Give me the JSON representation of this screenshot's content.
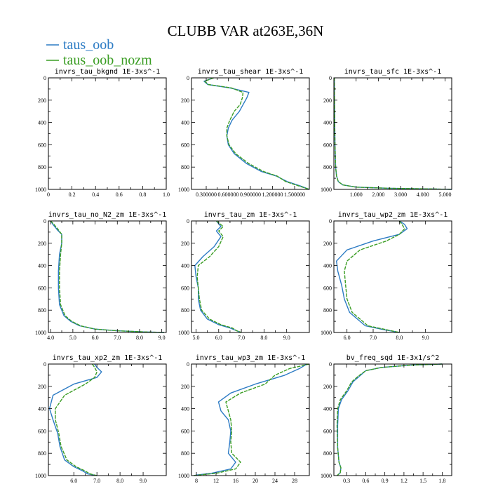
{
  "title": "CLUBB VAR at263E,36N",
  "legend": [
    {
      "name": "taus_oob",
      "color": "#2c7bc4"
    },
    {
      "name": "taus_oob_nozm",
      "color": "#3a9d23"
    }
  ],
  "chart_data": [
    {
      "type": "line",
      "title": "invrs_tau_bkgnd  1E-3xs^-1",
      "xlim": [
        0,
        1.0
      ],
      "ylim": [
        0,
        1000
      ],
      "xticks": [
        0,
        0.2,
        0.4,
        0.6,
        0.8,
        1.0
      ],
      "xticklabels": [
        "0",
        "0.2",
        "0.4",
        "0.6",
        "0.8",
        "1.0"
      ],
      "yticks": [
        0,
        200,
        400,
        600,
        800,
        1000
      ],
      "yticklabels": [
        "0",
        "200",
        "400",
        "600",
        "800",
        "1000"
      ],
      "series": []
    },
    {
      "type": "line",
      "title": "invrs_tau_shear  1E-3xs^-1",
      "xlim": [
        0.1,
        1.7
      ],
      "ylim": [
        0,
        1000
      ],
      "xticks": [
        0.3,
        0.6,
        0.9,
        1.2,
        1.5
      ],
      "xticklabels": [
        "0.300000",
        "0.600000",
        "0.900000",
        "1.200000",
        "1.500000"
      ],
      "yticks": [
        0,
        200,
        400,
        600,
        800,
        1000
      ],
      "yticklabels": [
        "0",
        "200",
        "400",
        "600",
        "800",
        "1000"
      ],
      "series": [
        {
          "name": "taus_oob",
          "x": [
            0.4,
            0.27,
            0.32,
            0.62,
            0.88,
            0.85,
            0.8,
            0.75,
            0.65,
            0.6,
            0.58,
            0.6,
            0.68,
            0.85,
            1.05,
            1.25,
            1.4,
            1.58,
            1.7
          ],
          "y": [
            0,
            30,
            60,
            90,
            130,
            180,
            240,
            300,
            380,
            450,
            520,
            600,
            680,
            770,
            840,
            880,
            930,
            970,
            1000
          ]
        },
        {
          "name": "taus_oob_nozm",
          "x": [
            0.4,
            0.28,
            0.33,
            0.64,
            0.8,
            0.79,
            0.76,
            0.68,
            0.62,
            0.58,
            0.58,
            0.61,
            0.7,
            0.88,
            1.08,
            1.26,
            1.38,
            1.56,
            1.7
          ],
          "y": [
            0,
            30,
            60,
            90,
            130,
            180,
            240,
            300,
            380,
            450,
            520,
            600,
            680,
            770,
            840,
            880,
            930,
            970,
            1000
          ]
        }
      ]
    },
    {
      "type": "line",
      "title": "invrs_tau_sfc  1E-3xs^-1",
      "xlim": [
        0,
        5.3
      ],
      "ylim": [
        0,
        1000
      ],
      "xticks": [
        1,
        2,
        3,
        4,
        5
      ],
      "xticklabels": [
        "1.000",
        "2.000",
        "3.000",
        "4.000",
        "5.000"
      ],
      "yticks": [
        0,
        200,
        400,
        600,
        800,
        1000
      ],
      "yticklabels": [
        "0",
        "200",
        "400",
        "600",
        "800",
        "1000"
      ],
      "series": [
        {
          "name": "taus_oob",
          "x": [
            0.02,
            0.03,
            0.05,
            0.08,
            0.12,
            0.2,
            0.4,
            1.0,
            2.5,
            4.5,
            5.3
          ],
          "y": [
            0,
            300,
            600,
            800,
            880,
            930,
            960,
            980,
            990,
            996,
            1000
          ]
        },
        {
          "name": "taus_oob_nozm",
          "x": [
            0.02,
            0.03,
            0.05,
            0.08,
            0.12,
            0.2,
            0.4,
            1.0,
            2.5,
            4.5,
            5.3
          ],
          "y": [
            0,
            300,
            600,
            800,
            880,
            930,
            960,
            980,
            990,
            996,
            1000
          ]
        }
      ]
    },
    {
      "type": "line",
      "title": "invrs_tau_no_N2_zm  1E-3xs^-1",
      "xlim": [
        3.9,
        9.2
      ],
      "ylim": [
        0,
        1000
      ],
      "xticks": [
        4,
        5,
        6,
        7,
        8,
        9
      ],
      "xticklabels": [
        "4.0",
        "5.0",
        "6.0",
        "7.0",
        "8.0",
        "9.0"
      ],
      "yticks": [
        0,
        200,
        400,
        600,
        800,
        1000
      ],
      "yticklabels": [
        "0",
        "200",
        "400",
        "600",
        "800",
        "1000"
      ],
      "series": [
        {
          "name": "taus_oob",
          "x": [
            4.0,
            4.1,
            4.3,
            4.5,
            4.5,
            4.4,
            4.35,
            4.35,
            4.4,
            4.6,
            4.9,
            5.3,
            6.0,
            7.0,
            8.2,
            9.1
          ],
          "y": [
            0,
            30,
            80,
            120,
            200,
            300,
            450,
            600,
            750,
            850,
            900,
            940,
            970,
            985,
            995,
            1000
          ]
        },
        {
          "name": "taus_oob_nozm",
          "x": [
            4.0,
            4.15,
            4.35,
            4.5,
            4.5,
            4.45,
            4.4,
            4.4,
            4.45,
            4.65,
            4.95,
            5.35,
            6.0,
            7.0,
            8.2,
            9.1
          ],
          "y": [
            0,
            30,
            80,
            120,
            200,
            300,
            450,
            600,
            750,
            850,
            900,
            940,
            970,
            985,
            995,
            1000
          ]
        }
      ]
    },
    {
      "type": "line",
      "title": "invrs_tau_zm  1E-3xs^-1",
      "xlim": [
        4.8,
        10.0
      ],
      "ylim": [
        0,
        1000
      ],
      "xticks": [
        5,
        6,
        7,
        8,
        9
      ],
      "xticklabels": [
        "5.0",
        "6.0",
        "7.0",
        "8.0",
        "9.0"
      ],
      "yticks": [
        0,
        200,
        400,
        600,
        800,
        1000
      ],
      "yticklabels": [
        "0",
        "200",
        "400",
        "600",
        "800",
        "1000"
      ],
      "series": [
        {
          "name": "taus_oob",
          "x": [
            5.9,
            6.1,
            5.9,
            6.1,
            5.8,
            5.3,
            4.95,
            5.0,
            5.1,
            5.1,
            5.2,
            5.5,
            6.0,
            6.5,
            6.8,
            7.0
          ],
          "y": [
            0,
            50,
            90,
            140,
            230,
            320,
            400,
            500,
            600,
            700,
            800,
            880,
            930,
            960,
            985,
            1000
          ]
        },
        {
          "name": "taus_oob_nozm",
          "x": [
            5.9,
            6.2,
            6.0,
            6.2,
            6.0,
            5.6,
            5.1,
            5.05,
            5.1,
            5.15,
            5.25,
            5.6,
            6.1,
            6.6,
            6.8,
            7.0
          ],
          "y": [
            0,
            50,
            90,
            140,
            230,
            320,
            400,
            500,
            600,
            700,
            800,
            880,
            930,
            960,
            985,
            1000
          ]
        }
      ]
    },
    {
      "type": "line",
      "title": "invrs_tau_wp2_zm  1E-3xs^-1",
      "xlim": [
        5.5,
        10.0
      ],
      "ylim": [
        0,
        1000
      ],
      "xticks": [
        6,
        7,
        8,
        9
      ],
      "xticklabels": [
        "6.0",
        "7.0",
        "8.0",
        "9.0"
      ],
      "yticks": [
        0,
        200,
        400,
        600,
        800,
        1000
      ],
      "yticklabels": [
        "0",
        "200",
        "400",
        "600",
        "800",
        "1000"
      ],
      "series": [
        {
          "name": "taus_oob",
          "x": [
            8.0,
            8.2,
            8.3,
            8.0,
            7.0,
            6.0,
            5.6,
            5.65,
            5.8,
            5.9,
            6.1,
            6.5,
            6.7,
            7.3,
            8.0
          ],
          "y": [
            0,
            30,
            70,
            120,
            180,
            260,
            360,
            450,
            580,
            700,
            820,
            900,
            940,
            970,
            1000
          ]
        },
        {
          "name": "taus_oob_nozm",
          "x": [
            8.0,
            8.1,
            8.2,
            8.0,
            7.5,
            6.5,
            6.0,
            5.9,
            5.95,
            6.0,
            6.2,
            6.6,
            6.8,
            7.4,
            8.0
          ],
          "y": [
            0,
            30,
            70,
            120,
            180,
            260,
            360,
            450,
            580,
            700,
            820,
            900,
            940,
            970,
            1000
          ]
        }
      ]
    },
    {
      "type": "line",
      "title": "invrs_tau_xp2_zm  1E-3xs^-1",
      "xlim": [
        4.9,
        10.0
      ],
      "ylim": [
        0,
        1000
      ],
      "xticks": [
        6,
        7,
        8,
        9
      ],
      "xticklabels": [
        "6.0",
        "7.0",
        "8.0",
        "9.0"
      ],
      "yticks": [
        0,
        200,
        400,
        600,
        800,
        1000
      ],
      "yticklabels": [
        "0",
        "200",
        "400",
        "600",
        "800",
        "1000"
      ],
      "series": [
        {
          "name": "taus_oob",
          "x": [
            6.9,
            7.0,
            7.2,
            7.0,
            6.0,
            5.1,
            4.95,
            5.1,
            5.3,
            5.4,
            5.6,
            6.0,
            6.4,
            6.6,
            7.0
          ],
          "y": [
            0,
            30,
            70,
            120,
            180,
            280,
            400,
            500,
            620,
            740,
            860,
            920,
            960,
            985,
            1000
          ]
        },
        {
          "name": "taus_oob_nozm",
          "x": [
            6.8,
            6.9,
            7.0,
            6.9,
            6.5,
            5.6,
            5.2,
            5.2,
            5.35,
            5.45,
            5.7,
            6.1,
            6.5,
            6.7,
            7.0
          ],
          "y": [
            0,
            30,
            70,
            120,
            180,
            280,
            400,
            500,
            620,
            740,
            860,
            920,
            960,
            985,
            1000
          ]
        }
      ]
    },
    {
      "type": "line",
      "title": "invrs_tau_wp3_zm  1E-3xs^-1",
      "xlim": [
        7,
        31
      ],
      "ylim": [
        0,
        1000
      ],
      "xticks": [
        8,
        12,
        16,
        20,
        24,
        28
      ],
      "xticklabels": [
        "8",
        "12",
        "16",
        "20",
        "24",
        "28"
      ],
      "yticks": [
        0,
        200,
        400,
        600,
        800,
        1000
      ],
      "yticklabels": [
        "0",
        "200",
        "400",
        "600",
        "800",
        "1000"
      ],
      "series": [
        {
          "name": "taus_oob",
          "x": [
            30.5,
            29,
            26,
            20,
            15,
            12.5,
            13,
            14.5,
            15,
            14.8,
            14.5,
            16,
            15,
            11,
            8,
            7.5
          ],
          "y": [
            0,
            40,
            100,
            180,
            260,
            340,
            420,
            500,
            600,
            700,
            800,
            880,
            940,
            980,
            995,
            1000
          ]
        },
        {
          "name": "taus_oob_nozm",
          "x": [
            31,
            27,
            24,
            22,
            17,
            14,
            14.5,
            15,
            15.2,
            15,
            15.2,
            17,
            16,
            12,
            8.5,
            7.5
          ],
          "y": [
            0,
            40,
            100,
            180,
            260,
            340,
            420,
            500,
            600,
            700,
            800,
            880,
            940,
            980,
            995,
            1000
          ]
        }
      ]
    },
    {
      "type": "line",
      "title": "bv_freq_sqd  1E-3x1/s^2",
      "xlim": [
        0.1,
        1.95
      ],
      "ylim": [
        0,
        1000
      ],
      "xticks": [
        0.3,
        0.6,
        0.9,
        1.2,
        1.5,
        1.8
      ],
      "xticklabels": [
        "0.3",
        "0.6",
        "0.9",
        "1.2",
        "1.5",
        "1.8"
      ],
      "yticks": [
        0,
        200,
        400,
        600,
        800,
        1000
      ],
      "yticklabels": [
        "0",
        "200",
        "400",
        "600",
        "800",
        "1000"
      ],
      "series": [
        {
          "name": "taus_oob",
          "x": [
            1.8,
            1.3,
            0.85,
            0.6,
            0.5,
            0.4,
            0.32,
            0.22,
            0.17,
            0.16,
            0.16,
            0.18,
            0.21,
            0.2,
            0.15
          ],
          "y": [
            0,
            10,
            30,
            60,
            110,
            160,
            240,
            320,
            400,
            550,
            750,
            880,
            930,
            975,
            1000
          ]
        },
        {
          "name": "taus_oob_nozm",
          "x": [
            1.8,
            1.3,
            0.85,
            0.6,
            0.48,
            0.38,
            0.3,
            0.2,
            0.16,
            0.15,
            0.16,
            0.18,
            0.21,
            0.2,
            0.15
          ],
          "y": [
            0,
            10,
            30,
            60,
            110,
            160,
            240,
            320,
            400,
            550,
            750,
            880,
            930,
            975,
            1000
          ]
        }
      ]
    }
  ]
}
